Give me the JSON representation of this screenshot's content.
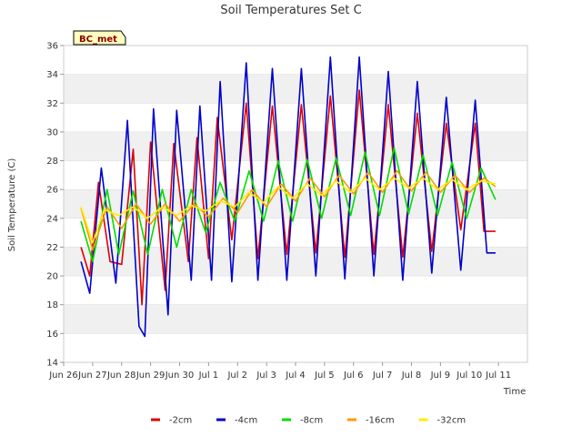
{
  "chart_data": {
    "type": "line",
    "title": "Soil Temperatures Set C",
    "xlabel": "Time",
    "ylabel": "Soil Temperature (C)",
    "ylim": [
      14,
      36
    ],
    "xlim": [
      0,
      16
    ],
    "yticks": [
      14,
      16,
      18,
      20,
      22,
      24,
      26,
      28,
      30,
      32,
      34,
      36
    ],
    "xticks": [
      {
        "pos": 0,
        "label": "Jun 26"
      },
      {
        "pos": 1,
        "label": "Jun 27"
      },
      {
        "pos": 2,
        "label": "Jun 28"
      },
      {
        "pos": 3,
        "label": "Jun 29"
      },
      {
        "pos": 4,
        "label": "Jun 30"
      },
      {
        "pos": 5,
        "label": "Jul 1"
      },
      {
        "pos": 6,
        "label": "Jul 2"
      },
      {
        "pos": 7,
        "label": "Jul 3"
      },
      {
        "pos": 8,
        "label": "Jul 4"
      },
      {
        "pos": 9,
        "label": "Jul 5"
      },
      {
        "pos": 10,
        "label": "Jul 6"
      },
      {
        "pos": 11,
        "label": "Jul 7"
      },
      {
        "pos": 12,
        "label": "Jul 8"
      },
      {
        "pos": 13,
        "label": "Jul 9"
      },
      {
        "pos": 14,
        "label": "Jul 10"
      },
      {
        "pos": 15,
        "label": "Jul 11"
      }
    ],
    "badge": "BC_met",
    "grid_bands": true,
    "legend_position": "bottom",
    "series": [
      {
        "name": "-2cm",
        "color": "#dd0000",
        "x": [
          0.6,
          0.9,
          1.2,
          1.6,
          2.0,
          2.4,
          2.7,
          3.0,
          3.5,
          3.8,
          4.3,
          4.6,
          5.0,
          5.3,
          5.8,
          6.3,
          6.7,
          7.2,
          7.7,
          8.2,
          8.7,
          9.2,
          9.7,
          10.2,
          10.7,
          11.2,
          11.7,
          12.2,
          12.7,
          13.2,
          13.7,
          14.2,
          14.5,
          14.9
        ],
        "y": [
          22,
          20,
          26.5,
          21,
          20.8,
          28.8,
          18,
          29.3,
          19,
          29.2,
          21,
          29.6,
          21.2,
          31,
          22.5,
          32,
          21.2,
          31.8,
          21.5,
          31.9,
          21.6,
          32.5,
          21.3,
          32.9,
          21.5,
          31.9,
          21.3,
          31.3,
          21.7,
          30.6,
          23.2,
          30.6,
          23.1,
          23.1
        ]
      },
      {
        "name": "-4cm",
        "color": "#0000cc",
        "x": [
          0.6,
          0.9,
          1.3,
          1.8,
          2.2,
          2.6,
          2.8,
          3.1,
          3.6,
          3.9,
          4.4,
          4.7,
          5.1,
          5.4,
          5.8,
          6.3,
          6.7,
          7.2,
          7.7,
          8.2,
          8.7,
          9.2,
          9.7,
          10.2,
          10.7,
          11.2,
          11.7,
          12.2,
          12.7,
          13.2,
          13.7,
          14.2,
          14.6,
          14.9
        ],
        "y": [
          21,
          18.8,
          27.5,
          19.5,
          30.8,
          16.5,
          15.8,
          31.6,
          17.3,
          31.5,
          19.7,
          31.8,
          19.7,
          33.5,
          19.6,
          34.8,
          19.7,
          34.4,
          19.7,
          34.4,
          20,
          35.2,
          19.8,
          35.2,
          20,
          34.2,
          19.7,
          33.5,
          20.2,
          32.4,
          20.4,
          32.2,
          21.6,
          21.6
        ]
      },
      {
        "name": "-8cm",
        "color": "#00dd00",
        "x": [
          0.6,
          1.0,
          1.5,
          1.9,
          2.4,
          2.9,
          3.4,
          3.9,
          4.4,
          4.9,
          5.4,
          5.9,
          6.4,
          6.9,
          7.4,
          7.9,
          8.4,
          8.9,
          9.4,
          9.9,
          10.4,
          10.9,
          11.4,
          11.9,
          12.4,
          12.9,
          13.4,
          13.9,
          14.4,
          14.9
        ],
        "y": [
          23.8,
          21,
          26,
          21.5,
          25.9,
          21.5,
          26,
          22,
          26,
          23,
          26.5,
          23.8,
          27.3,
          23.8,
          28,
          23.8,
          28.1,
          24,
          28.2,
          24.2,
          28.6,
          24.2,
          28.9,
          24.3,
          28.4,
          24.2,
          27.9,
          24,
          27.5,
          25.3
        ]
      },
      {
        "name": "-16cm",
        "color": "#ff9900",
        "x": [
          0.6,
          1.0,
          1.5,
          2.0,
          2.5,
          3.0,
          3.5,
          4.0,
          4.5,
          5.0,
          5.5,
          6.0,
          6.5,
          7.0,
          7.5,
          8.0,
          8.5,
          9.0,
          9.5,
          10.0,
          10.5,
          11.0,
          11.5,
          12.0,
          12.5,
          13.0,
          13.5,
          14.0,
          14.5,
          14.9
        ],
        "y": [
          24.7,
          21.8,
          24.8,
          23.3,
          25,
          23.6,
          25,
          23.8,
          25,
          24.1,
          25.4,
          24.4,
          26,
          24.8,
          26.4,
          25.2,
          26.8,
          25.5,
          27,
          25.7,
          27.2,
          25.8,
          27.3,
          25.9,
          27.2,
          25.8,
          27,
          25.8,
          26.8,
          26.2
        ]
      },
      {
        "name": "-32cm",
        "color": "#ffee00",
        "x": [
          0.6,
          1.0,
          1.4,
          1.9,
          2.4,
          2.9,
          3.4,
          3.9,
          4.4,
          4.9,
          5.4,
          5.9,
          6.4,
          6.9,
          7.4,
          7.9,
          8.4,
          8.9,
          9.4,
          9.9,
          10.4,
          10.9,
          11.4,
          11.9,
          12.4,
          12.9,
          13.4,
          13.9,
          14.4,
          14.9
        ],
        "y": [
          24.8,
          22.3,
          24.6,
          24.2,
          24.8,
          24,
          24.8,
          24.2,
          24.9,
          24.5,
          25.2,
          24.8,
          25.8,
          25.1,
          26.2,
          25.4,
          26.4,
          25.6,
          26.6,
          25.8,
          26.8,
          26,
          26.8,
          26.1,
          26.8,
          26,
          26.7,
          26,
          26.6,
          26.4
        ]
      }
    ]
  }
}
